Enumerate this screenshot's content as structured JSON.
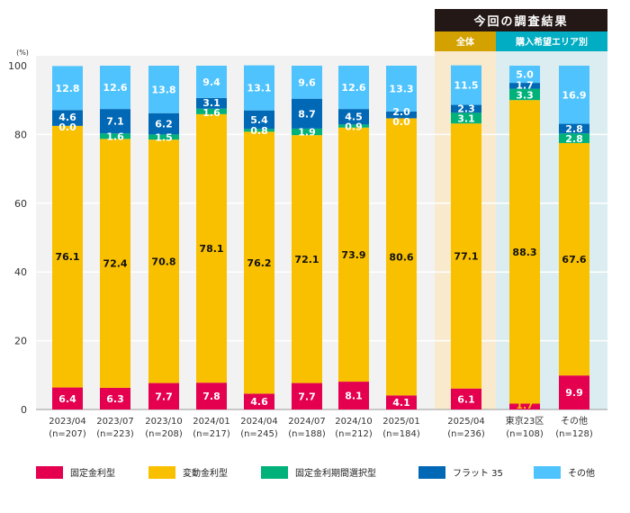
{
  "chart_data": {
    "type": "bar",
    "stacked": true,
    "y_unit_label": "(%)",
    "ylim": [
      0,
      100
    ],
    "yticks": [
      0,
      20,
      40,
      60,
      80,
      100
    ],
    "grid": true,
    "legend_position": "bottom",
    "categories": [
      {
        "label": "2023/04",
        "n": "(n=207)"
      },
      {
        "label": "2023/07",
        "n": "(n=223)"
      },
      {
        "label": "2023/10",
        "n": "(n=208)"
      },
      {
        "label": "2024/01",
        "n": "(n=217)"
      },
      {
        "label": "2024/04",
        "n": "(n=245)"
      },
      {
        "label": "2024/07",
        "n": "(n=188)"
      },
      {
        "label": "2024/10",
        "n": "(n=212)"
      },
      {
        "label": "2025/01",
        "n": "(n=184)"
      },
      {
        "label": "2025/04",
        "n": "(n=236)"
      },
      {
        "label": "東京23区",
        "n": "(n=108)"
      },
      {
        "label": "その他",
        "n": "(n=128)"
      }
    ],
    "series": [
      {
        "name": "固定金利型",
        "color": "#e4004f",
        "values": [
          6.4,
          6.3,
          7.7,
          7.8,
          4.6,
          7.7,
          8.1,
          4.1,
          6.1,
          1.7,
          9.9
        ]
      },
      {
        "name": "変動金利型",
        "color": "#f9c000",
        "values": [
          76.1,
          72.4,
          70.8,
          78.1,
          76.2,
          72.1,
          73.9,
          80.6,
          77.1,
          88.3,
          67.6
        ]
      },
      {
        "name": "固定金利期間選択型",
        "color": "#00b27a",
        "values": [
          0.0,
          1.6,
          1.5,
          1.6,
          0.8,
          1.9,
          0.9,
          0.0,
          3.1,
          3.3,
          2.8
        ]
      },
      {
        "name": "フラット 35",
        "color": "#0068b5",
        "values": [
          4.6,
          7.1,
          6.2,
          3.1,
          5.4,
          8.7,
          4.5,
          2.0,
          2.3,
          1.7,
          2.8
        ]
      },
      {
        "name": "その他",
        "color": "#4fc3fd",
        "values": [
          12.8,
          12.6,
          13.8,
          9.4,
          13.1,
          9.6,
          12.6,
          13.3,
          11.5,
          5.0,
          16.9
        ]
      }
    ],
    "header": {
      "title": "今回の調査結果",
      "groups": [
        {
          "label": "全体",
          "color": "#d4a200",
          "bg": "#f9eacd"
        },
        {
          "label": "購入希望エリア別",
          "color": "#00adc2",
          "bg": "#dbedf0"
        }
      ]
    }
  }
}
